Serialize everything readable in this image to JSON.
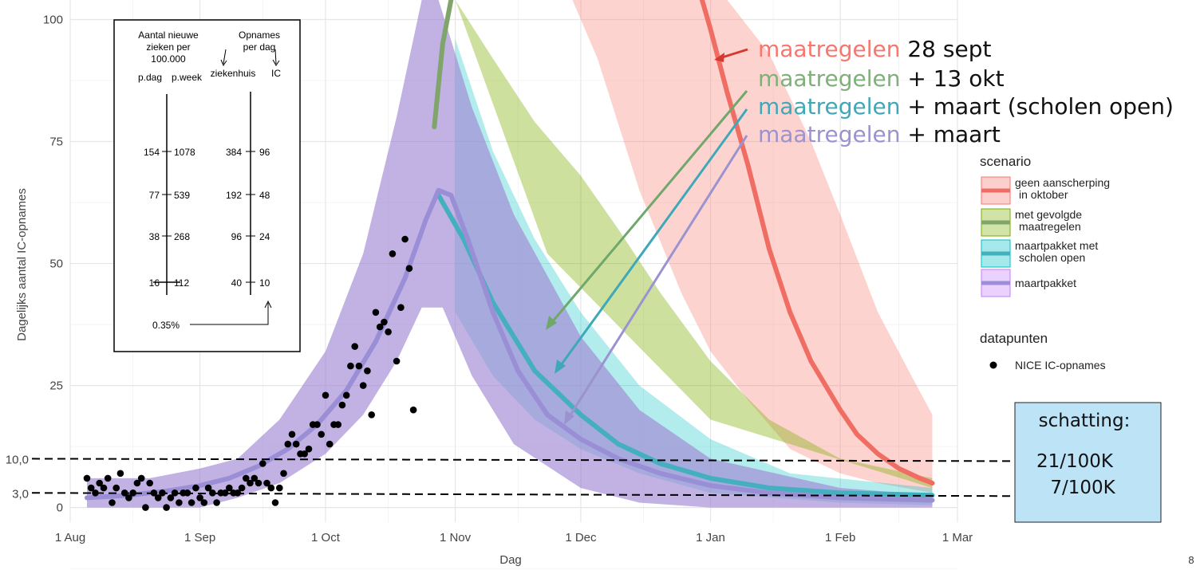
{
  "chart_data": {
    "type": "line",
    "xlabel": "Dag",
    "ylabel": "Dagelijks aantal IC-opnames",
    "x_ticks": [
      "1 Aug",
      "1 Sep",
      "1 Oct",
      "1 Nov",
      "1 Dec",
      "1 Jan",
      "1 Feb",
      "1 Mar"
    ],
    "x_range": [
      "2020-08-01",
      "2021-03-01"
    ],
    "ylim": [
      -3,
      104
    ],
    "y_ticks": [
      0,
      25,
      50,
      75,
      100
    ],
    "grid": true,
    "extra_y_labels": [
      {
        "text": "10,0",
        "value": 10
      },
      {
        "text": "3,0",
        "value": 3
      }
    ],
    "series": [
      {
        "name": "geen aanscherping in oktober",
        "color": "#F8766D",
        "points": [
          [
            "2020-12-30",
            104
          ],
          [
            "2021-01-01",
            98
          ],
          [
            "2021-01-05",
            85
          ],
          [
            "2021-01-10",
            70
          ],
          [
            "2021-01-15",
            53
          ],
          [
            "2021-01-20",
            40
          ],
          [
            "2021-01-25",
            30
          ],
          [
            "2021-02-01",
            20
          ],
          [
            "2021-02-05",
            15
          ],
          [
            "2021-02-10",
            11
          ],
          [
            "2021-02-15",
            8
          ],
          [
            "2021-02-20",
            6
          ],
          [
            "2021-02-23",
            5
          ]
        ],
        "band_upper": [
          [
            "2020-12-19",
            104
          ],
          [
            "2021-01-05",
            104
          ],
          [
            "2021-01-15",
            93
          ],
          [
            "2021-01-25",
            75
          ],
          [
            "2021-02-01",
            60
          ],
          [
            "2021-02-10",
            40
          ],
          [
            "2021-02-18",
            27
          ],
          [
            "2021-02-23",
            19
          ]
        ],
        "band_lower": [
          [
            "2020-11-29",
            104
          ],
          [
            "2020-12-05",
            92
          ],
          [
            "2020-12-15",
            65
          ],
          [
            "2020-12-25",
            44
          ],
          [
            "2021-01-01",
            32
          ],
          [
            "2021-01-10",
            22
          ],
          [
            "2021-01-20",
            12
          ],
          [
            "2021-02-01",
            7
          ],
          [
            "2021-02-10",
            5
          ],
          [
            "2021-02-23",
            3
          ]
        ]
      },
      {
        "name": "met gevolgde maatregelen",
        "color": "#7CAE00",
        "points": [
          [
            "2020-10-27",
            78
          ],
          [
            "2020-10-29",
            95
          ],
          [
            "2020-10-31",
            104
          ]
        ],
        "band_upper": [
          [
            "2020-11-01",
            104
          ],
          [
            "2020-11-10",
            92
          ],
          [
            "2020-11-20",
            79
          ],
          [
            "2020-12-01",
            68
          ],
          [
            "2020-12-10",
            57
          ],
          [
            "2020-12-20",
            44
          ],
          [
            "2021-01-01",
            30
          ],
          [
            "2021-01-15",
            18
          ],
          [
            "2021-02-01",
            10
          ],
          [
            "2021-02-23",
            6
          ]
        ],
        "band_lower": [
          [
            "2020-11-01",
            104
          ],
          [
            "2020-11-23",
            52
          ],
          [
            "2021-01-01",
            18
          ],
          [
            "2021-02-23",
            4
          ]
        ]
      },
      {
        "name": "maartpakket met scholen open",
        "color": "#00BFC4",
        "points": [
          [
            "2020-10-28",
            64
          ],
          [
            "2020-11-03",
            55
          ],
          [
            "2020-11-10",
            42
          ],
          [
            "2020-11-20",
            28
          ],
          [
            "2020-12-01",
            19
          ],
          [
            "2020-12-10",
            13
          ],
          [
            "2020-12-20",
            9
          ],
          [
            "2021-01-01",
            6
          ],
          [
            "2021-01-15",
            4
          ],
          [
            "2021-02-01",
            3
          ],
          [
            "2021-02-23",
            2.5
          ]
        ],
        "band_upper": [
          [
            "2020-11-01",
            96
          ],
          [
            "2020-11-10",
            73
          ],
          [
            "2020-11-20",
            55
          ],
          [
            "2020-12-01",
            40
          ],
          [
            "2020-12-15",
            25
          ],
          [
            "2021-01-01",
            14
          ],
          [
            "2021-01-20",
            7
          ],
          [
            "2021-02-23",
            4
          ]
        ],
        "band_lower": [
          [
            "2020-11-01",
            40
          ],
          [
            "2020-11-10",
            27
          ],
          [
            "2020-11-20",
            18
          ],
          [
            "2020-12-01",
            12
          ],
          [
            "2020-12-15",
            7
          ],
          [
            "2021-01-01",
            3
          ],
          [
            "2021-02-01",
            1
          ],
          [
            "2021-02-23",
            0.5
          ]
        ]
      },
      {
        "name": "maartpakket",
        "color": "#C77CFF",
        "points": [
          [
            "2020-08-05",
            2
          ],
          [
            "2020-08-15",
            2.5
          ],
          [
            "2020-08-25",
            3.5
          ],
          [
            "2020-09-01",
            4.5
          ],
          [
            "2020-09-08",
            6
          ],
          [
            "2020-09-15",
            8.5
          ],
          [
            "2020-09-22",
            12
          ],
          [
            "2020-09-29",
            17
          ],
          [
            "2020-10-06",
            24
          ],
          [
            "2020-10-13",
            34
          ],
          [
            "2020-10-20",
            47
          ],
          [
            "2020-10-25",
            59
          ],
          [
            "2020-10-28",
            65
          ],
          [
            "2020-10-31",
            64
          ],
          [
            "2020-11-04",
            55
          ],
          [
            "2020-11-10",
            40
          ],
          [
            "2020-11-16",
            28
          ],
          [
            "2020-11-23",
            19
          ],
          [
            "2020-12-01",
            14
          ],
          [
            "2020-12-10",
            10
          ],
          [
            "2020-12-20",
            7
          ],
          [
            "2021-01-01",
            4.5
          ],
          [
            "2021-01-15",
            3
          ],
          [
            "2021-02-01",
            2
          ],
          [
            "2021-02-23",
            1.5
          ]
        ],
        "band_upper": [
          [
            "2020-08-05",
            6
          ],
          [
            "2020-08-20",
            6
          ],
          [
            "2020-09-01",
            8
          ],
          [
            "2020-09-10",
            10
          ],
          [
            "2020-09-20",
            18
          ],
          [
            "2020-10-01",
            32
          ],
          [
            "2020-10-10",
            52
          ],
          [
            "2020-10-18",
            80
          ],
          [
            "2020-10-24",
            104
          ],
          [
            "2020-10-28",
            104
          ],
          [
            "2020-11-05",
            82
          ],
          [
            "2020-11-15",
            60
          ],
          [
            "2020-12-01",
            35
          ],
          [
            "2020-12-15",
            20
          ],
          [
            "2021-01-01",
            10
          ],
          [
            "2021-02-01",
            4
          ],
          [
            "2021-02-23",
            2.5
          ]
        ],
        "band_lower": [
          [
            "2020-08-05",
            0
          ],
          [
            "2020-09-01",
            0
          ],
          [
            "2020-09-10",
            2
          ],
          [
            "2020-09-20",
            5
          ],
          [
            "2020-10-01",
            11
          ],
          [
            "2020-10-10",
            19
          ],
          [
            "2020-10-18",
            30
          ],
          [
            "2020-10-24",
            41
          ],
          [
            "2020-10-29",
            41
          ],
          [
            "2020-11-05",
            27
          ],
          [
            "2020-11-15",
            13
          ],
          [
            "2020-12-01",
            4
          ],
          [
            "2020-12-15",
            1
          ],
          [
            "2021-01-01",
            0
          ],
          [
            "2021-02-23",
            0
          ]
        ]
      }
    ],
    "datapoints": {
      "name": "NICE IC-opnames",
      "points": [
        [
          "2020-08-05",
          6
        ],
        [
          "2020-08-06",
          4
        ],
        [
          "2020-08-07",
          3
        ],
        [
          "2020-08-08",
          5
        ],
        [
          "2020-08-09",
          4
        ],
        [
          "2020-08-10",
          6
        ],
        [
          "2020-08-11",
          1
        ],
        [
          "2020-08-12",
          4
        ],
        [
          "2020-08-13",
          7
        ],
        [
          "2020-08-14",
          3
        ],
        [
          "2020-08-15",
          2
        ],
        [
          "2020-08-16",
          3
        ],
        [
          "2020-08-17",
          5
        ],
        [
          "2020-08-18",
          6
        ],
        [
          "2020-08-19",
          0
        ],
        [
          "2020-08-20",
          5
        ],
        [
          "2020-08-21",
          3
        ],
        [
          "2020-08-22",
          2
        ],
        [
          "2020-08-23",
          3
        ],
        [
          "2020-08-24",
          0
        ],
        [
          "2020-08-25",
          2
        ],
        [
          "2020-08-26",
          3
        ],
        [
          "2020-08-27",
          1
        ],
        [
          "2020-08-28",
          3
        ],
        [
          "2020-08-29",
          3
        ],
        [
          "2020-08-30",
          1
        ],
        [
          "2020-08-31",
          4
        ],
        [
          "2020-09-01",
          2
        ],
        [
          "2020-09-02",
          1
        ],
        [
          "2020-09-03",
          4
        ],
        [
          "2020-09-04",
          3
        ],
        [
          "2020-09-05",
          1
        ],
        [
          "2020-09-06",
          3
        ],
        [
          "2020-09-07",
          3
        ],
        [
          "2020-09-08",
          4
        ],
        [
          "2020-09-09",
          3
        ],
        [
          "2020-09-10",
          3
        ],
        [
          "2020-09-11",
          4
        ],
        [
          "2020-09-12",
          6
        ],
        [
          "2020-09-13",
          5
        ],
        [
          "2020-09-14",
          6
        ],
        [
          "2020-09-15",
          5
        ],
        [
          "2020-09-16",
          9
        ],
        [
          "2020-09-17",
          5
        ],
        [
          "2020-09-18",
          4
        ],
        [
          "2020-09-19",
          1
        ],
        [
          "2020-09-20",
          4
        ],
        [
          "2020-09-21",
          7
        ],
        [
          "2020-09-22",
          13
        ],
        [
          "2020-09-23",
          15
        ],
        [
          "2020-09-24",
          13
        ],
        [
          "2020-09-25",
          11
        ],
        [
          "2020-09-26",
          11
        ],
        [
          "2020-09-27",
          12
        ],
        [
          "2020-09-28",
          17
        ],
        [
          "2020-09-29",
          17
        ],
        [
          "2020-09-30",
          15
        ],
        [
          "2020-10-01",
          23
        ],
        [
          "2020-10-02",
          13
        ],
        [
          "2020-10-03",
          17
        ],
        [
          "2020-10-04",
          17
        ],
        [
          "2020-10-05",
          21
        ],
        [
          "2020-10-06",
          23
        ],
        [
          "2020-10-07",
          29
        ],
        [
          "2020-10-08",
          33
        ],
        [
          "2020-10-09",
          29
        ],
        [
          "2020-10-10",
          25
        ],
        [
          "2020-10-11",
          28
        ],
        [
          "2020-10-12",
          19
        ],
        [
          "2020-10-13",
          40
        ],
        [
          "2020-10-14",
          37
        ],
        [
          "2020-10-15",
          38
        ],
        [
          "2020-10-16",
          36
        ],
        [
          "2020-10-17",
          52
        ],
        [
          "2020-10-18",
          30
        ],
        [
          "2020-10-19",
          41
        ],
        [
          "2020-10-20",
          55
        ],
        [
          "2020-10-21",
          49
        ],
        [
          "2020-10-22",
          20
        ]
      ]
    },
    "legend": {
      "position": "right",
      "scenario_title": "scenario",
      "datapoints_title": "datapunten"
    },
    "annotations": {
      "maatregelen_word": "maatregelen",
      "lines": [
        {
          "rest": " 28 sept",
          "color": "#F8766D"
        },
        {
          "rest": " + 13 okt",
          "color": "#7FB07A"
        },
        {
          "rest": " + maart (scholen open)",
          "color": "#3FA8B8"
        },
        {
          "rest": " + maart",
          "color": "#9B92D0"
        }
      ]
    },
    "inset": {
      "left_header": [
        "Aantal nieuwe",
        "zieken per",
        "100.000"
      ],
      "left_cols": [
        "p.dag",
        "p.week"
      ],
      "right_header": [
        "Opnames",
        "per dag"
      ],
      "right_cols": [
        "ziekenhuis",
        "IC"
      ],
      "left_rows": [
        [
          "154",
          "1078"
        ],
        [
          "77",
          "539"
        ],
        [
          "38",
          "268"
        ],
        [
          "16",
          "112"
        ]
      ],
      "right_rows": [
        [
          "384",
          "96"
        ],
        [
          "192",
          "48"
        ],
        [
          "96",
          "24"
        ],
        [
          "40",
          "10"
        ]
      ],
      "footer": "0.35%"
    },
    "estimate_box": {
      "title": "schatting:",
      "line1": "21/100K",
      "line2": "7/100K",
      "fill": "#BDE3F7"
    },
    "page_number": "8"
  }
}
